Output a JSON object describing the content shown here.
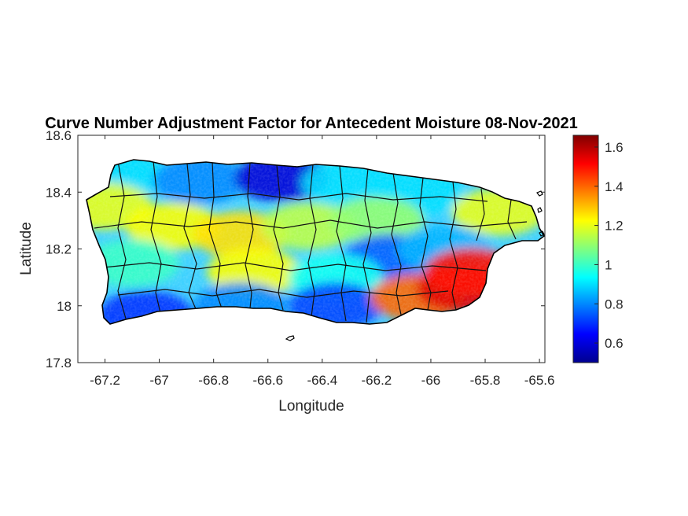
{
  "chart_data": {
    "type": "heatmap",
    "title": "Curve Number Adjustment Factor for Antecedent Moisture 08-Nov-2021",
    "xlabel": "Longitude",
    "ylabel": "Latitude",
    "xlim": [
      -67.3,
      -65.58
    ],
    "ylim": [
      17.8,
      18.6
    ],
    "x_ticks": [
      -67.2,
      -67,
      -66.8,
      -66.6,
      -66.4,
      -66.2,
      -66,
      -65.8,
      -65.6
    ],
    "x_tick_labels": [
      "-67.2",
      "-67",
      "-66.8",
      "-66.6",
      "-66.4",
      "-66.2",
      "-66",
      "-65.8",
      "-65.6"
    ],
    "y_ticks": [
      17.8,
      18,
      18.2,
      18.4,
      18.6
    ],
    "y_tick_labels": [
      "17.8",
      "18",
      "18.2",
      "18.4",
      "18.6"
    ],
    "colorbar": {
      "colormap": "jet",
      "range": [
        0.5,
        1.66
      ],
      "ticks": [
        0.6,
        0.8,
        1,
        1.2,
        1.4,
        1.6
      ],
      "tick_labels": [
        "0.6",
        "0.8",
        "1",
        "1.2",
        "1.4",
        "1.6"
      ]
    },
    "grid": false,
    "regions": [
      {
        "lon": -67.15,
        "lat": 18.46,
        "value": 0.9
      },
      {
        "lon": -66.85,
        "lat": 18.44,
        "value": 0.8
      },
      {
        "lon": -66.55,
        "lat": 18.45,
        "value": 0.6
      },
      {
        "lon": -66.3,
        "lat": 18.43,
        "value": 0.9
      },
      {
        "lon": -66.05,
        "lat": 18.4,
        "value": 0.9
      },
      {
        "lon": -65.75,
        "lat": 18.33,
        "value": 1.2
      },
      {
        "lon": -67.2,
        "lat": 18.35,
        "value": 1.2
      },
      {
        "lon": -66.95,
        "lat": 18.28,
        "value": 1.22
      },
      {
        "lon": -66.7,
        "lat": 18.25,
        "value": 1.26
      },
      {
        "lon": -66.45,
        "lat": 18.28,
        "value": 1.15
      },
      {
        "lon": -66.2,
        "lat": 18.3,
        "value": 1.1
      },
      {
        "lon": -66.15,
        "lat": 18.17,
        "value": 0.75
      },
      {
        "lon": -65.95,
        "lat": 18.2,
        "value": 0.85
      },
      {
        "lon": -67.1,
        "lat": 18.15,
        "value": 1.0
      },
      {
        "lon": -66.65,
        "lat": 18.12,
        "value": 1.22
      },
      {
        "lon": -66.35,
        "lat": 18.1,
        "value": 0.95
      },
      {
        "lon": -67.05,
        "lat": 17.97,
        "value": 0.7
      },
      {
        "lon": -66.7,
        "lat": 18.0,
        "value": 0.8
      },
      {
        "lon": -66.35,
        "lat": 18.0,
        "value": 0.72
      },
      {
        "lon": -66.05,
        "lat": 18.03,
        "value": 1.4
      },
      {
        "lon": -65.88,
        "lat": 18.06,
        "value": 1.55
      },
      {
        "lon": -65.85,
        "lat": 18.12,
        "value": 1.5
      }
    ]
  }
}
